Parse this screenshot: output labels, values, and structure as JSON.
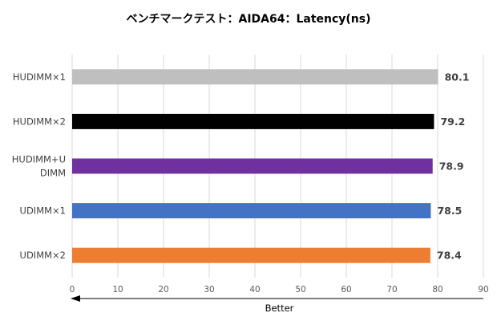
{
  "chart_data": {
    "type": "bar",
    "orientation": "horizontal",
    "title": "ベンチマークテスト：AIDA64：Latency(ns)",
    "xlabel": "",
    "ylabel": "",
    "categories": [
      "HUDIMM×1",
      "HUDIMM×2",
      "HUDIMM+UDIMM",
      "UDIMM×1",
      "UDIMM×2"
    ],
    "category_lines": [
      [
        "HUDIMM×1"
      ],
      [
        "HUDIMM×2"
      ],
      [
        "HUDIMM+U",
        "DIMM"
      ],
      [
        "UDIMM×1"
      ],
      [
        "UDIMM×2"
      ]
    ],
    "values": [
      80.1,
      79.2,
      78.9,
      78.5,
      78.4
    ],
    "value_labels": [
      "80.1",
      "79.2",
      "78.9",
      "78.5",
      "78.4"
    ],
    "bar_colors": [
      "#bfbfbf",
      "#000000",
      "#7030a0",
      "#4472c4",
      "#ed7d31"
    ],
    "xlim": [
      0,
      90
    ],
    "xticks": [
      0,
      10,
      20,
      30,
      40,
      50,
      60,
      70,
      80,
      90
    ],
    "xtick_labels": [
      "0",
      "10",
      "20",
      "30",
      "40",
      "50",
      "60",
      "70",
      "80",
      "90"
    ],
    "grid": true,
    "legend": "none",
    "annotation": {
      "text": "Better",
      "arrow_direction": "left"
    }
  }
}
